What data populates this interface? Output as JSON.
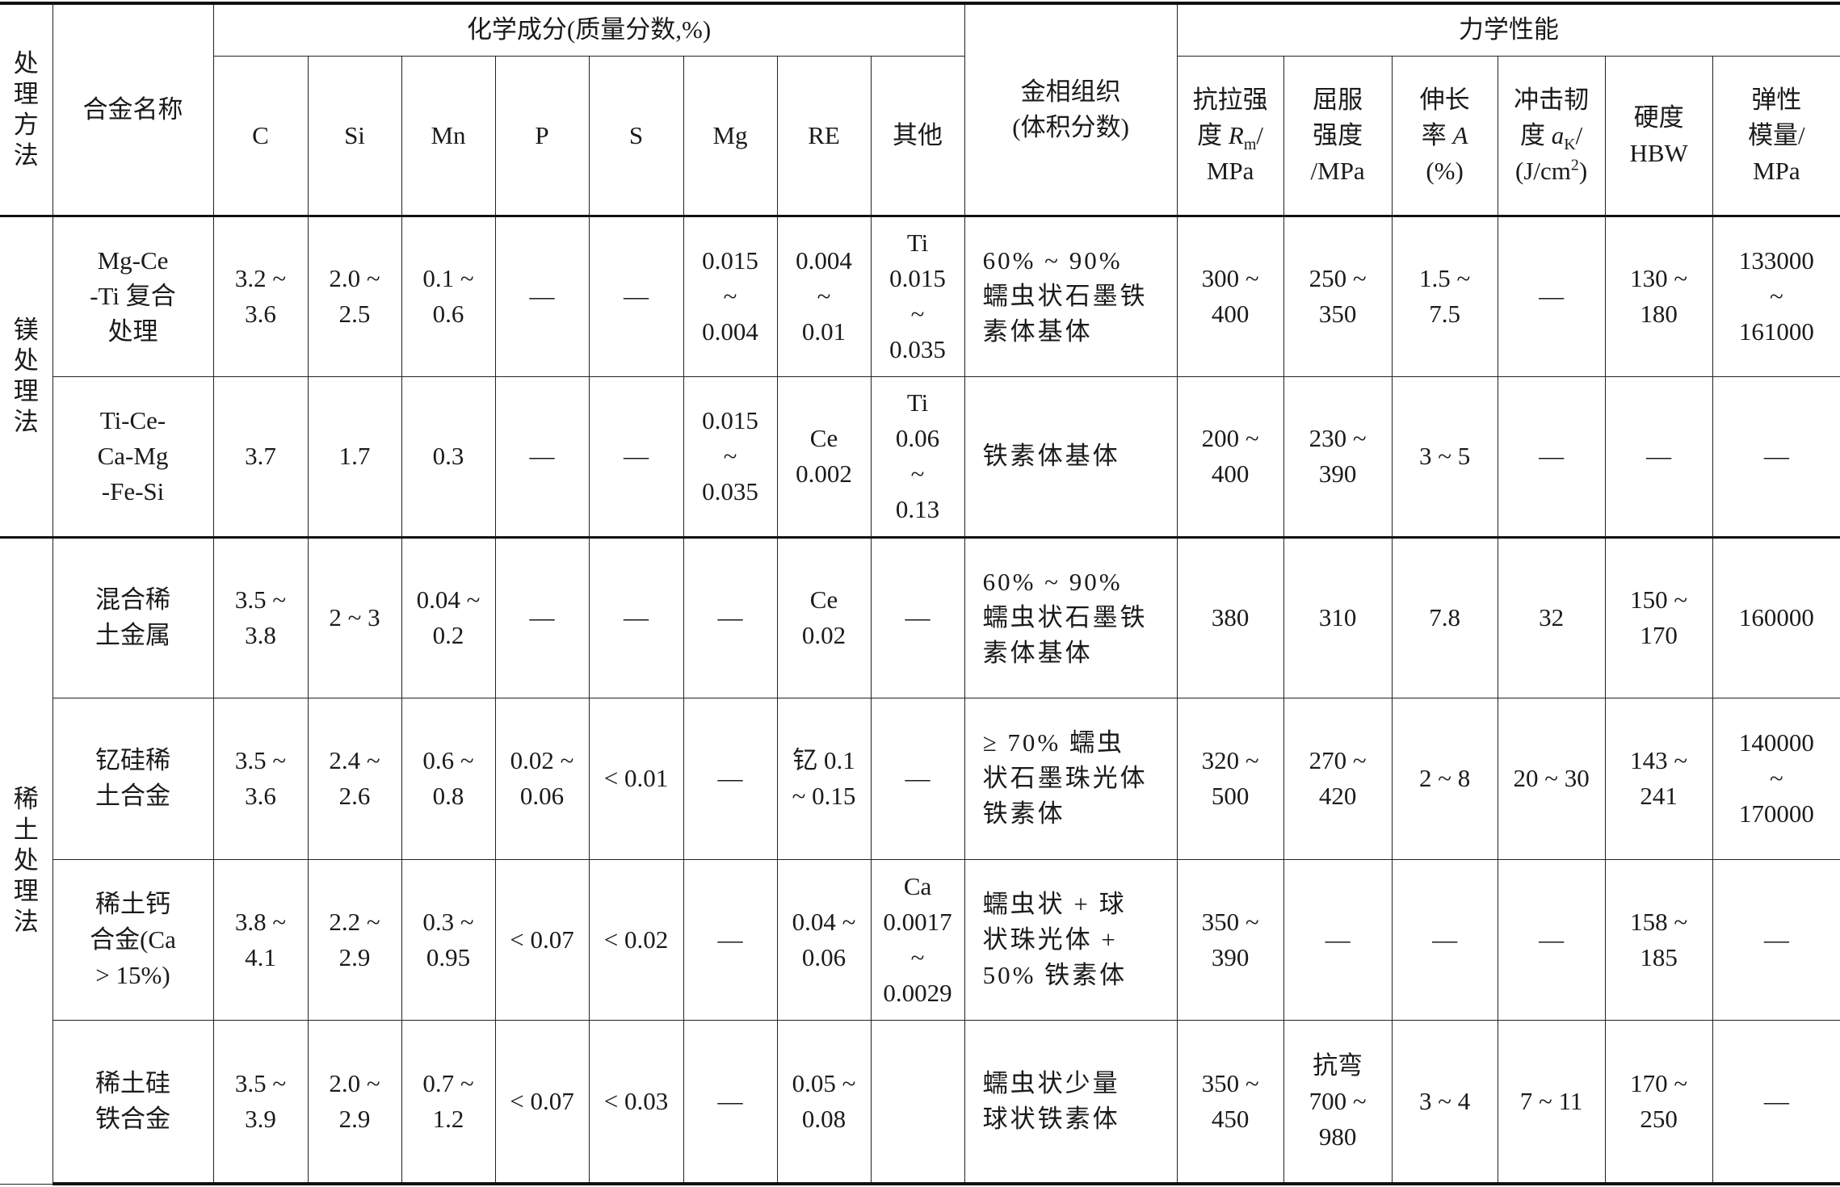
{
  "headers": {
    "method": "处\n理\n方\n法",
    "alloy": "合金名称",
    "chem_group": "化学成分(质量分数,%)",
    "micro": "金相组织\n(体积分数)",
    "mech_group": "力学性能",
    "chem_cols": [
      "C",
      "Si",
      "Mn",
      "P",
      "S",
      "Mg",
      "RE",
      "其他"
    ],
    "mech_cols": [
      [
        {
          "t": "抗拉强\n度 "
        },
        {
          "t": "R",
          "i": true
        },
        {
          "t": "m",
          "sub": true
        },
        {
          "t": "/\nMPa"
        }
      ],
      [
        {
          "t": "屈服\n强度\n/MPa"
        }
      ],
      [
        {
          "t": "伸长\n率 "
        },
        {
          "t": "A",
          "i": true
        },
        {
          "t": "\n(%)"
        }
      ],
      [
        {
          "t": "冲击韧\n度 "
        },
        {
          "t": "a",
          "i": true
        },
        {
          "t": "K",
          "sub": true
        },
        {
          "t": "/\n(J/cm"
        },
        {
          "t": "2",
          "sup": true
        },
        {
          "t": ")"
        }
      ],
      [
        {
          "t": "硬度\nHBW"
        }
      ],
      [
        {
          "t": "弹性\n模量/\nMPa"
        }
      ]
    ]
  },
  "groups": [
    {
      "method": "镁\n处\n理\n法",
      "rows": [
        {
          "alloy": "Mg-Ce\n-Ti 复合\n处理",
          "chem": [
            "3.2 ~\n3.6",
            "2.0 ~\n2.5",
            "0.1 ~\n0.6",
            "—",
            "—",
            "0.015\n~\n0.004",
            "0.004\n~\n0.01",
            "Ti\n0.015\n~\n0.035"
          ],
          "micro": "60% ~ 90%\n蠕虫状石墨铁\n素体基体",
          "mech": [
            "300 ~\n400",
            "250 ~\n350",
            "1.5 ~\n7.5",
            "—",
            "130 ~\n180",
            "133000\n~\n161000"
          ]
        },
        {
          "alloy": "Ti-Ce-\nCa-Mg\n-Fe-Si",
          "chem": [
            "3.7",
            "1.7",
            "0.3",
            "—",
            "—",
            "0.015\n~\n0.035",
            "Ce\n0.002",
            "Ti\n0.06\n~\n0.13"
          ],
          "micro": "铁素体基体",
          "mech": [
            "200 ~\n400",
            "230 ~\n390",
            "3 ~ 5",
            "—",
            "—",
            "—"
          ]
        }
      ]
    },
    {
      "method": "稀\n土\n处\n理\n法",
      "rows": [
        {
          "alloy": "混合稀\n土金属",
          "chem": [
            "3.5 ~\n3.8",
            "2 ~ 3",
            "0.04 ~\n0.2",
            "—",
            "—",
            "—",
            "Ce\n0.02",
            "—"
          ],
          "micro": "60% ~ 90%\n蠕虫状石墨铁\n素体基体",
          "mech": [
            "380",
            "310",
            "7.8",
            "32",
            "150 ~\n170",
            "160000"
          ]
        },
        {
          "alloy": "钇硅稀\n土合金",
          "chem": [
            "3.5 ~\n3.6",
            "2.4 ~\n2.6",
            "0.6 ~\n0.8",
            "0.02 ~\n0.06",
            "< 0.01",
            "—",
            "钇 0.1\n~ 0.15",
            "—"
          ],
          "micro": "≥ 70% 蠕虫\n状石墨珠光体\n铁素体",
          "mech": [
            "320 ~\n500",
            "270 ~\n420",
            "2 ~ 8",
            "20 ~ 30",
            "143 ~\n241",
            "140000\n~\n170000"
          ]
        },
        {
          "alloy": "稀土钙\n合金(Ca\n> 15%)",
          "chem": [
            "3.8 ~\n4.1",
            "2.2 ~\n2.9",
            "0.3 ~\n0.95",
            "< 0.07",
            "< 0.02",
            "—",
            "0.04 ~\n0.06",
            "Ca\n0.0017\n~\n0.0029"
          ],
          "micro": "蠕虫状 + 球\n状珠光体 +\n50% 铁素体",
          "mech": [
            "350 ~\n390",
            "—",
            "—",
            "—",
            "158 ~\n185",
            "—"
          ]
        },
        {
          "alloy": "稀土硅\n铁合金",
          "chem": [
            "3.5 ~\n3.9",
            "2.0 ~\n2.9",
            "0.7 ~\n1.2",
            "< 0.07",
            "< 0.03",
            "—",
            "0.05 ~\n0.08",
            ""
          ],
          "micro": "蠕虫状少量\n球状铁素体",
          "mech": [
            "350 ~\n450",
            "抗弯\n700 ~\n980",
            "3 ~ 4",
            "7 ~ 11",
            "170 ~\n250",
            "—"
          ]
        }
      ]
    }
  ]
}
